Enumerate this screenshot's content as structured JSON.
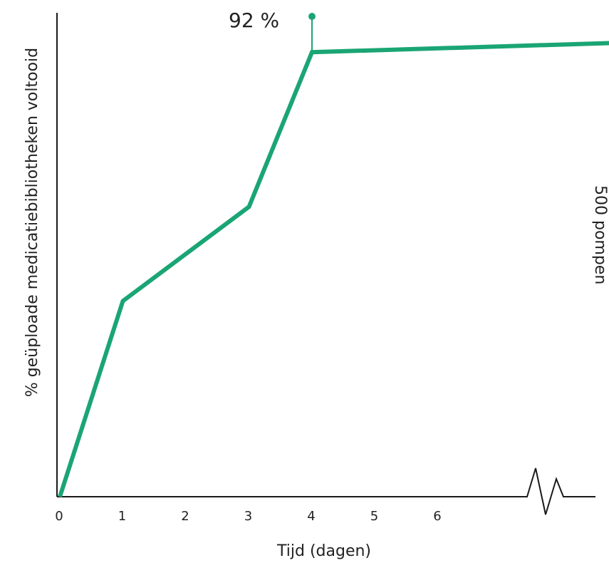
{
  "chart_data": {
    "type": "line",
    "xlabel": "Tijd (dagen)",
    "ylabel": "% geüploade medicatiebibliotheken voltooid",
    "x_ticks": [
      "0",
      "1",
      "2",
      "3",
      "4",
      "5",
      "6"
    ],
    "series": [
      {
        "x": [
          0,
          1,
          3,
          4,
          9
        ],
        "y": [
          0,
          40.5,
          60,
          92,
          94
        ]
      }
    ],
    "annotations": {
      "peak_label": "92 %",
      "side_label": "500 pompen"
    },
    "axis_break": true,
    "grid": false,
    "colors": {
      "line": "#1aa574",
      "axis": "#1a1a1a",
      "text": "#222222"
    }
  }
}
